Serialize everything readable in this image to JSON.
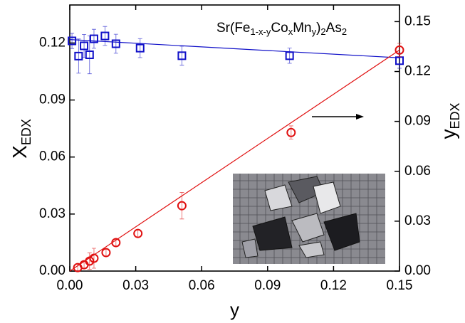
{
  "chart_data": {
    "type": "scatter",
    "annotation": [
      {
        "text": "Sr(Fe"
      },
      {
        "text": "1-x-y",
        "sub": true
      },
      {
        "text": "Co"
      },
      {
        "text": "x",
        "sub": true
      },
      {
        "text": "Mn"
      },
      {
        "text": "y",
        "sub": true
      },
      {
        "text": ")"
      },
      {
        "text": "2",
        "sub": true
      },
      {
        "text": "As"
      },
      {
        "text": "2",
        "sub": true
      }
    ],
    "x_label": "y",
    "y_label": {
      "text": "X",
      "sub": "EDX"
    },
    "y2_label": {
      "text": "y",
      "sub": "EDX"
    },
    "xlim": [
      0,
      0.15
    ],
    "xticks": [
      {
        "value": 0,
        "label": "0.00"
      },
      0.03,
      0.06,
      0.09,
      0.12,
      0.15
    ],
    "ylim": [
      0,
      0.14
    ],
    "yticks": [
      {
        "value": 0,
        "label": "0.00"
      },
      0.03,
      0.06,
      0.09,
      0.12
    ],
    "y2lim": [
      0,
      0.16
    ],
    "y2ticks": [
      {
        "value": 0,
        "label": "0.00"
      },
      0.03,
      0.06,
      0.09,
      0.12,
      0.15
    ],
    "series": [
      {
        "color": "#1010c8",
        "marker": "square",
        "axis": "y",
        "x": [
          0.001,
          0.004,
          0.0065,
          0.009,
          0.011,
          0.016,
          0.021,
          0.032,
          0.051,
          0.1,
          0.15
        ],
        "values": [
          0.1211,
          0.1131,
          0.1185,
          0.1138,
          0.1222,
          0.1237,
          0.1196,
          0.1173,
          0.1133,
          0.1133,
          0.1107
        ],
        "errors": [
          0.004,
          0.009,
          0.006,
          0.01,
          0.005,
          0.005,
          0.005,
          0.005,
          0.005,
          0.004,
          0.004
        ]
      },
      {
        "color": "#e01010",
        "marker": "circle",
        "axis": "y2",
        "x": [
          0.0036,
          0.0065,
          0.009,
          0.011,
          0.0165,
          0.021,
          0.031,
          0.051,
          0.1007,
          0.15
        ],
        "values": [
          0.0021,
          0.0038,
          0.006,
          0.0077,
          0.0111,
          0.0171,
          0.0226,
          0.0393,
          0.0833,
          0.1329
        ],
        "errors": [
          0.002,
          0.002,
          0.005,
          0.006,
          0.002,
          0.002,
          0.002,
          0.008,
          0.004,
          0.004
        ]
      },
      {
        "color": "#1010c8",
        "style": "line",
        "axis": "y",
        "x": [
          0,
          0.15
        ],
        "values": [
          0.1218,
          0.1122
        ]
      },
      {
        "color": "#e01010",
        "style": "line",
        "axis": "y2",
        "x": [
          0,
          0.15
        ],
        "values": [
          0,
          0.1329
        ]
      }
    ]
  }
}
